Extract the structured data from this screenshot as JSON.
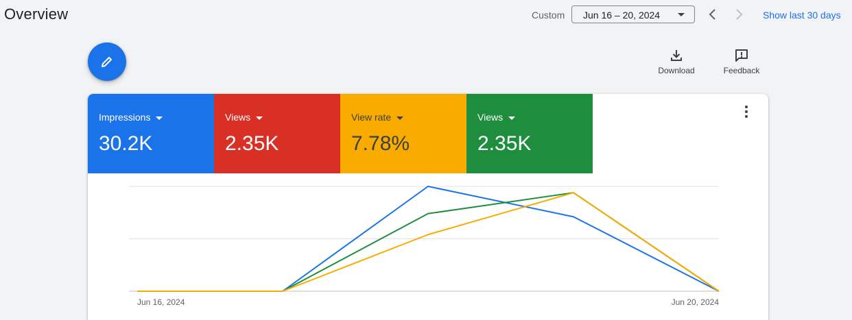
{
  "header": {
    "title": "Overview",
    "range_label": "Custom",
    "date_range": "Jun 16 – 20, 2024",
    "prev_icon": "chevron-left-icon",
    "next_icon": "chevron-right-icon",
    "show_last": "Show last 30 days"
  },
  "toolbar": {
    "edit_icon": "pencil-icon",
    "download_label": "Download",
    "feedback_label": "Feedback"
  },
  "metrics": [
    {
      "label": "Impressions",
      "value": "30.2K",
      "color": "#1a73e8"
    },
    {
      "label": "Views",
      "value": "2.35K",
      "color": "#d93025"
    },
    {
      "label": "View rate",
      "value": "7.78%",
      "color": "#f9ab00"
    },
    {
      "label": "Views",
      "value": "2.35K",
      "color": "#1e8e3e"
    }
  ],
  "chart_data": {
    "type": "line",
    "x": [
      "Jun 16, 2024",
      "Jun 17, 2024",
      "Jun 18, 2024",
      "Jun 19, 2024",
      "Jun 20, 2024"
    ],
    "x_tick_labels": [
      "Jun 16, 2024",
      "Jun 20, 2024"
    ],
    "ylim": [
      0,
      1
    ],
    "grid": true,
    "series": [
      {
        "color": "#1a73e8",
        "values": [
          0,
          0,
          1.0,
          0.71,
          0
        ]
      },
      {
        "color": "#1e8e3e",
        "values": [
          0,
          0,
          0.74,
          0.94,
          0
        ]
      },
      {
        "color": "#f9ab00",
        "values": [
          0,
          0,
          0.54,
          0.94,
          0
        ]
      }
    ]
  }
}
